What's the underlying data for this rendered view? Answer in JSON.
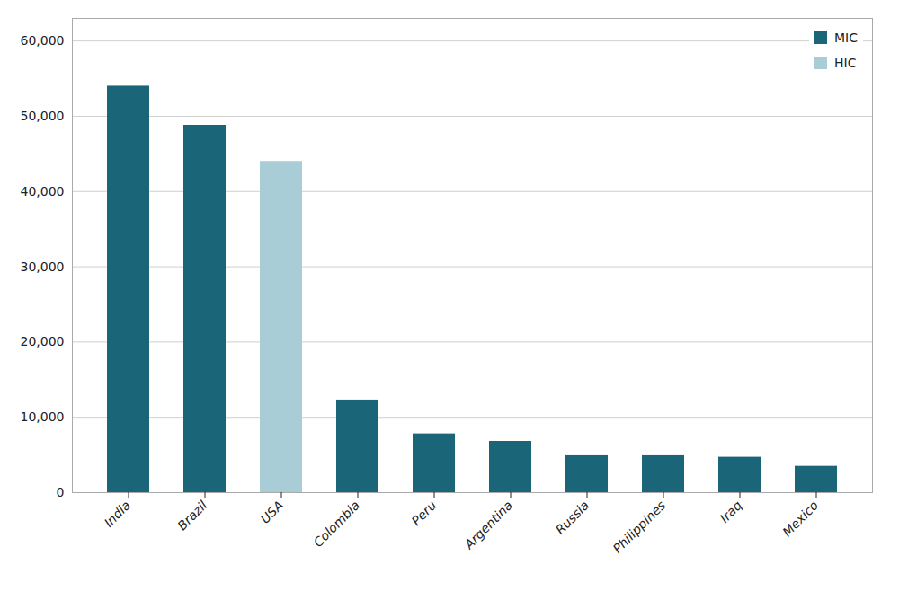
{
  "chart_data": {
    "type": "bar",
    "categories": [
      "India",
      "Brazil",
      "USA",
      "Colombia",
      "Peru",
      "Argentina",
      "Russia",
      "Philippines",
      "Iraq",
      "Mexico"
    ],
    "series": [
      {
        "name": "MIC",
        "color": "#1a6678",
        "values": [
          54000,
          48800,
          null,
          12300,
          7800,
          6800,
          4900,
          4900,
          4700,
          3500
        ]
      },
      {
        "name": "HIC",
        "color": "#a8cdd6",
        "values": [
          null,
          null,
          44000,
          null,
          null,
          null,
          null,
          null,
          null,
          null
        ]
      }
    ],
    "ylim": [
      0,
      63000
    ],
    "yticks": [
      0,
      {
        "value": 10000,
        "label": "10,000"
      },
      {
        "value": 20000,
        "label": "20,000"
      },
      {
        "value": 30000,
        "label": "30,000"
      },
      {
        "value": 40000,
        "label": "40,000"
      },
      {
        "value": 50000,
        "label": "50,000"
      },
      {
        "value": 60000,
        "label": "60,000"
      }
    ],
    "grid": true,
    "legend": "upper right"
  }
}
